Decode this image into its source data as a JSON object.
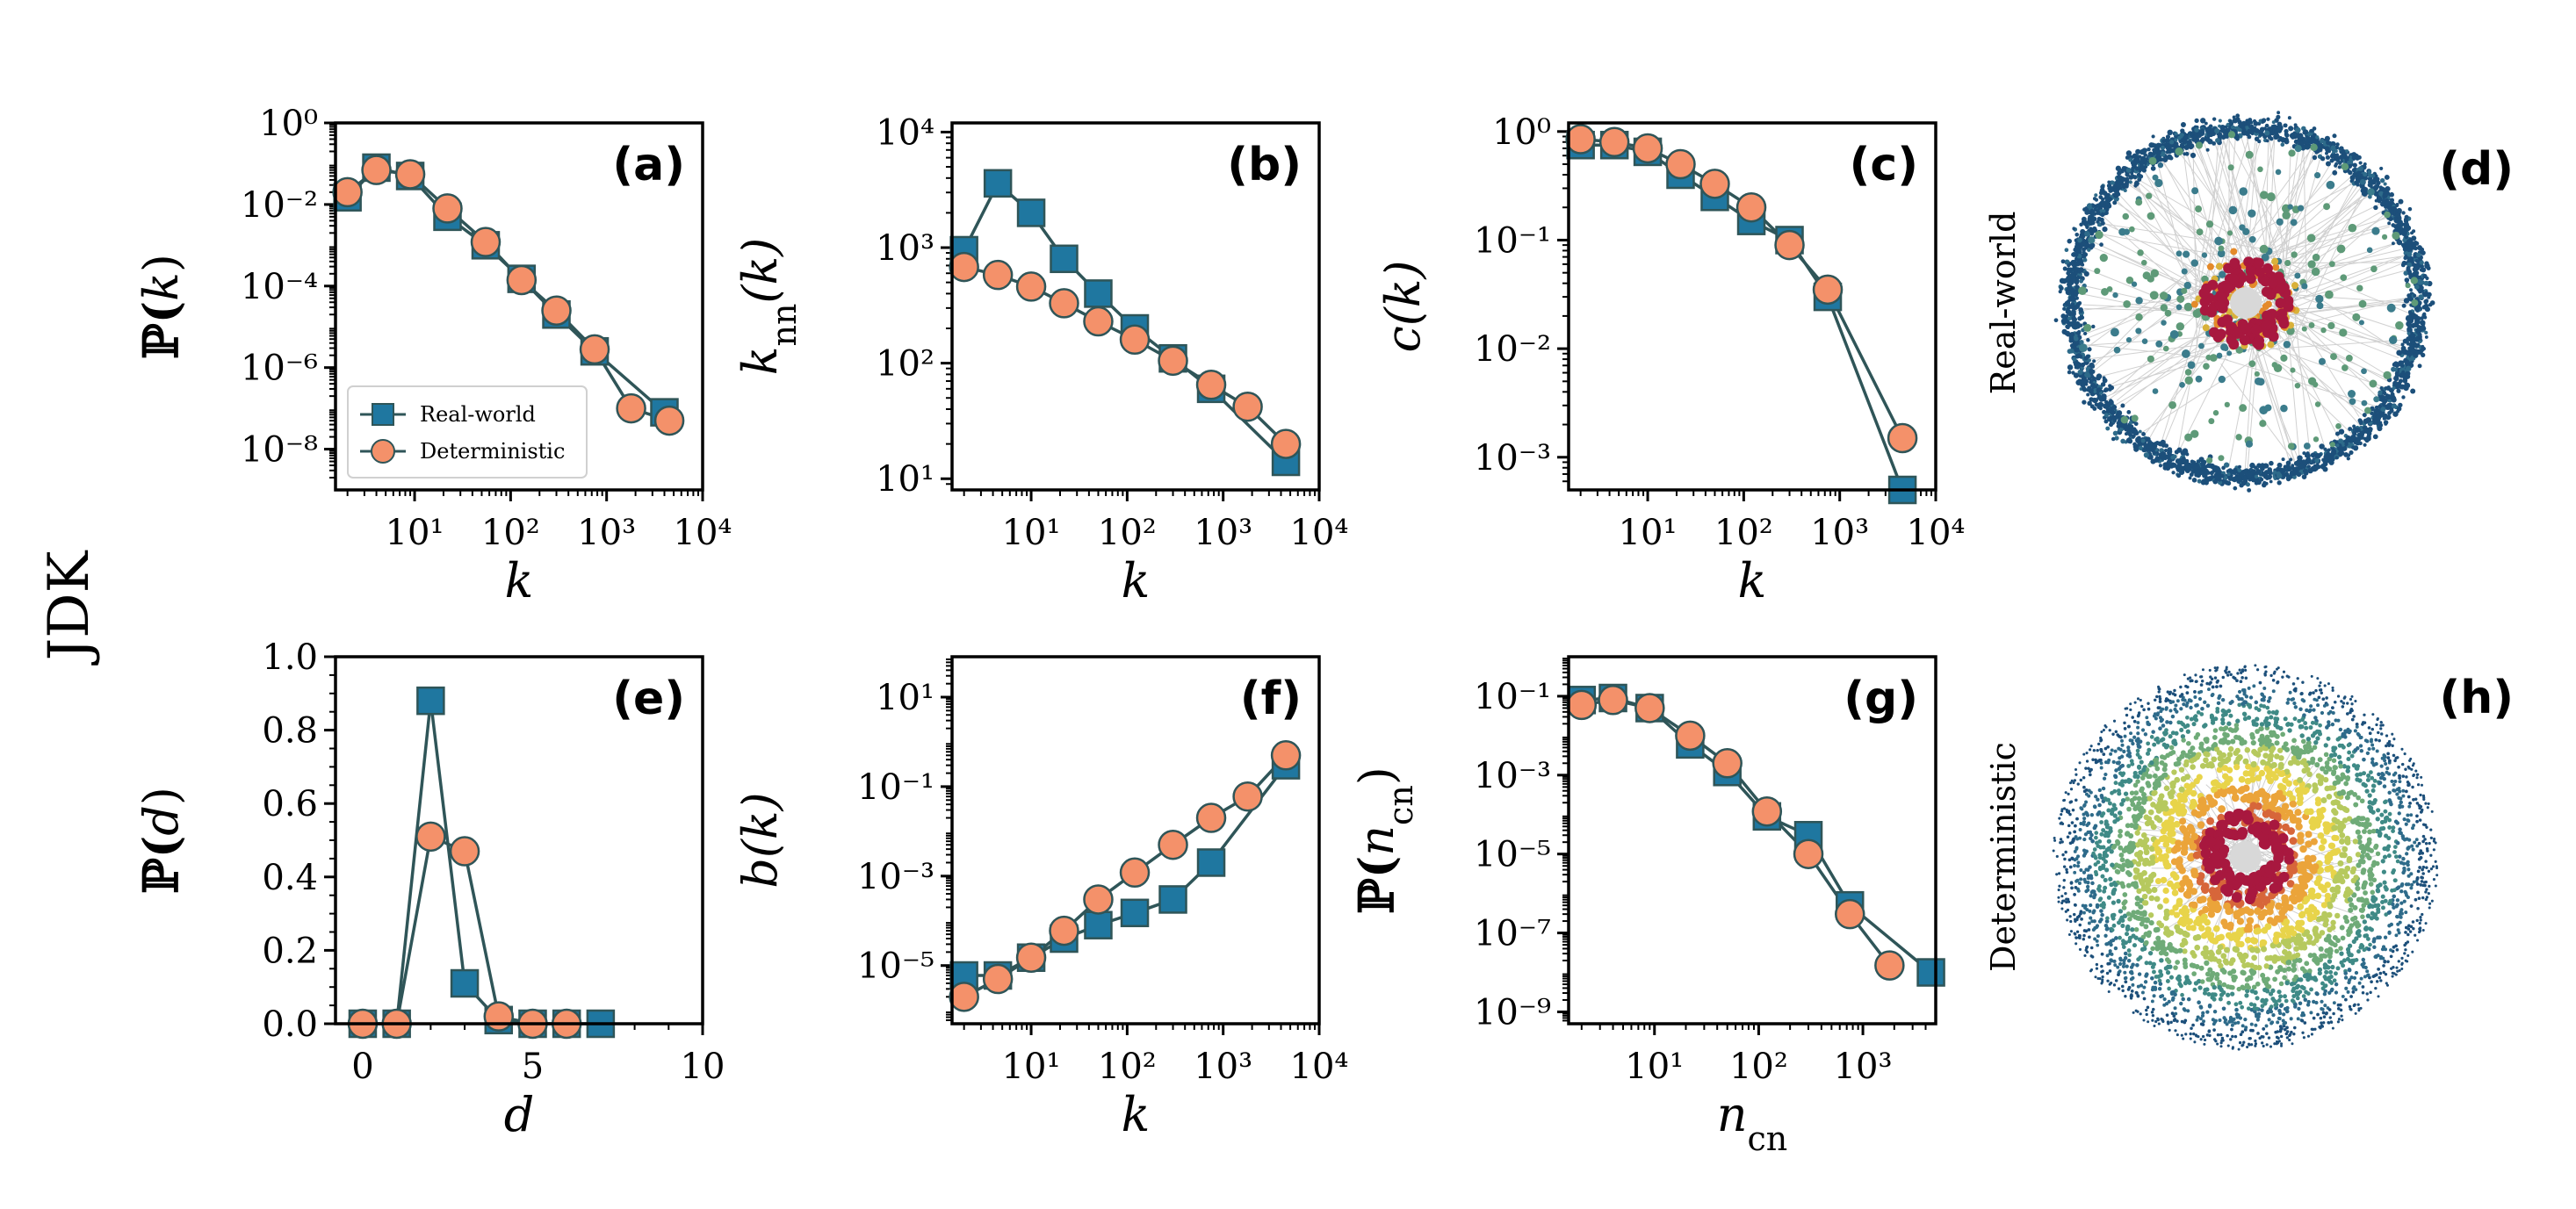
{
  "figure": {
    "row_label": "JDK",
    "colors": {
      "real": "#1f77a0",
      "det": "#f4916a",
      "edge": "#2f5558",
      "real_cloud": "#1c4f7a"
    }
  },
  "chart_data": [
    {
      "panel": "(a)",
      "type": "line",
      "xscale": "log",
      "yscale": "log",
      "xlabel": "k",
      "ylabel": "P(k)",
      "xlim": [
        1.5,
        10000
      ],
      "ylim": [
        1e-09,
        1
      ],
      "xticks": [
        10,
        100,
        1000,
        10000
      ],
      "xtick_labels": [
        "10¹",
        "10²",
        "10³",
        "10⁴"
      ],
      "yticks": [
        1e-08,
        1e-06,
        0.0001,
        0.01,
        1
      ],
      "ytick_labels": [
        "10⁻⁸",
        "10⁻⁶",
        "10⁻⁴",
        "10⁻²",
        "10⁰"
      ],
      "legend": {
        "position": "lower-left",
        "entries": [
          "Real-world",
          "Deterministic"
        ]
      },
      "series": [
        {
          "name": "Real-world",
          "marker": "square",
          "x": [
            2,
            4,
            9,
            22,
            55,
            130,
            300,
            750,
            4000
          ],
          "y": [
            0.015,
            0.08,
            0.05,
            0.005,
            0.001,
            0.00015,
            2e-05,
            2.5e-06,
            8e-08
          ]
        },
        {
          "name": "Deterministic",
          "marker": "circle",
          "x": [
            2,
            4,
            9,
            22,
            55,
            130,
            300,
            750,
            1800,
            4500
          ],
          "y": [
            0.02,
            0.07,
            0.055,
            0.008,
            0.0012,
            0.00014,
            2.5e-05,
            2.8e-06,
            1e-07,
            5e-08
          ]
        }
      ]
    },
    {
      "panel": "(b)",
      "type": "line",
      "xscale": "log",
      "yscale": "log",
      "xlabel": "k",
      "ylabel": "k_nn(k)",
      "xlim": [
        1.5,
        10000
      ],
      "ylim": [
        8,
        12000
      ],
      "xticks": [
        10,
        100,
        1000,
        10000
      ],
      "xtick_labels": [
        "10¹",
        "10²",
        "10³",
        "10⁴"
      ],
      "yticks": [
        10,
        100,
        1000,
        10000
      ],
      "ytick_labels": [
        "10¹",
        "10²",
        "10³",
        "10⁴"
      ],
      "series": [
        {
          "name": "Real-world",
          "marker": "square",
          "x": [
            2,
            4.5,
            10,
            22,
            50,
            120,
            300,
            750,
            4500
          ],
          "y": [
            950,
            3600,
            2000,
            800,
            400,
            200,
            110,
            60,
            14
          ]
        },
        {
          "name": "Deterministic",
          "marker": "circle",
          "x": [
            2,
            4.5,
            10,
            22,
            50,
            120,
            300,
            750,
            1800,
            4500
          ],
          "y": [
            680,
            580,
            460,
            330,
            230,
            160,
            105,
            65,
            42,
            20
          ]
        }
      ]
    },
    {
      "panel": "(c)",
      "type": "line",
      "xscale": "log",
      "yscale": "log",
      "xlabel": "k",
      "ylabel": "c(k)",
      "xlim": [
        1.5,
        10000
      ],
      "ylim": [
        0.0005,
        1.2
      ],
      "xticks": [
        10,
        100,
        1000,
        10000
      ],
      "xtick_labels": [
        "10¹",
        "10²",
        "10³",
        "10⁴"
      ],
      "yticks": [
        0.001,
        0.01,
        0.1,
        1
      ],
      "ytick_labels": [
        "10⁻³",
        "10⁻²",
        "10⁻¹",
        "10⁰"
      ],
      "series": [
        {
          "name": "Real-world",
          "marker": "square",
          "x": [
            2,
            4.5,
            10,
            22,
            50,
            120,
            300,
            750,
            4500
          ],
          "y": [
            0.75,
            0.75,
            0.65,
            0.4,
            0.25,
            0.15,
            0.1,
            0.03,
            0.0005
          ]
        },
        {
          "name": "Deterministic",
          "marker": "circle",
          "x": [
            2,
            4.5,
            10,
            22,
            50,
            120,
            300,
            750,
            4500
          ],
          "y": [
            0.85,
            0.8,
            0.7,
            0.5,
            0.33,
            0.2,
            0.09,
            0.035,
            0.0015
          ]
        }
      ]
    },
    {
      "panel": "(e)",
      "type": "line",
      "xscale": "linear",
      "yscale": "linear",
      "xlabel": "d",
      "ylabel": "P(d)",
      "xlim": [
        -0.8,
        10
      ],
      "ylim": [
        0,
        1.0
      ],
      "xticks": [
        0,
        5,
        10
      ],
      "xtick_labels": [
        "0",
        "5",
        "10"
      ],
      "yticks": [
        0,
        0.2,
        0.4,
        0.6,
        0.8,
        1.0
      ],
      "ytick_labels": [
        "0.0",
        "0.2",
        "0.4",
        "0.6",
        "0.8",
        "1.0"
      ],
      "series": [
        {
          "name": "Real-world",
          "marker": "square",
          "x": [
            0,
            1,
            2,
            3,
            4,
            5,
            6,
            7
          ],
          "y": [
            0,
            0,
            0.88,
            0.11,
            0.01,
            0,
            0,
            0
          ]
        },
        {
          "name": "Deterministic",
          "marker": "circle",
          "x": [
            0,
            1,
            2,
            3,
            4,
            5,
            6
          ],
          "y": [
            0,
            0,
            0.51,
            0.47,
            0.02,
            0,
            0
          ]
        }
      ]
    },
    {
      "panel": "(f)",
      "type": "line",
      "xscale": "log",
      "yscale": "log",
      "xlabel": "k",
      "ylabel": "b(k)",
      "xlim": [
        1.5,
        10000
      ],
      "ylim": [
        5e-07,
        80
      ],
      "xticks": [
        10,
        100,
        1000,
        10000
      ],
      "xtick_labels": [
        "10¹",
        "10²",
        "10³",
        "10⁴"
      ],
      "yticks": [
        1e-05,
        0.001,
        0.1,
        10
      ],
      "ytick_labels": [
        "10⁻⁵",
        "10⁻³",
        "10⁻¹",
        "10¹"
      ],
      "series": [
        {
          "name": "Real-world",
          "marker": "square",
          "x": [
            2,
            4.5,
            10,
            22,
            50,
            120,
            300,
            750,
            4500
          ],
          "y": [
            6e-06,
            6e-06,
            1.5e-05,
            4e-05,
            8e-05,
            0.00015,
            0.0003,
            0.002,
            0.3
          ]
        },
        {
          "name": "Deterministic",
          "marker": "circle",
          "x": [
            2,
            4.5,
            10,
            22,
            50,
            120,
            300,
            750,
            1800,
            4500
          ],
          "y": [
            2e-06,
            5e-06,
            1.5e-05,
            6e-05,
            0.0003,
            0.0012,
            0.005,
            0.02,
            0.06,
            0.5
          ]
        }
      ]
    },
    {
      "panel": "(g)",
      "type": "line",
      "xscale": "log",
      "yscale": "log",
      "xlabel": "n_cn",
      "ylabel": "P(n_cn)",
      "xlim": [
        1.5,
        5000
      ],
      "ylim": [
        5e-10,
        1
      ],
      "xticks": [
        10,
        100,
        1000
      ],
      "xtick_labels": [
        "10¹",
        "10²",
        "10³"
      ],
      "yticks": [
        1e-09,
        1e-07,
        1e-05,
        0.001,
        0.1
      ],
      "ytick_labels": [
        "10⁻⁹",
        "10⁻⁷",
        "10⁻⁵",
        "10⁻³",
        "10⁻¹"
      ],
      "series": [
        {
          "name": "Real-world",
          "marker": "square",
          "x": [
            2,
            4,
            9,
            22,
            50,
            120,
            300,
            750,
            4500
          ],
          "y": [
            0.08,
            0.09,
            0.05,
            0.006,
            0.0012,
            9e-05,
            3e-05,
            5e-07,
            1e-08
          ]
        },
        {
          "name": "Deterministic",
          "marker": "circle",
          "x": [
            2,
            4,
            9,
            22,
            50,
            120,
            300,
            750,
            1800
          ],
          "y": [
            0.06,
            0.08,
            0.05,
            0.01,
            0.002,
            0.00012,
            1e-05,
            3e-07,
            1.5e-08
          ]
        }
      ]
    }
  ],
  "network_panels": [
    {
      "panel": "(d)",
      "side_label": "Real-world"
    },
    {
      "panel": "(h)",
      "side_label": "Deterministic"
    }
  ]
}
